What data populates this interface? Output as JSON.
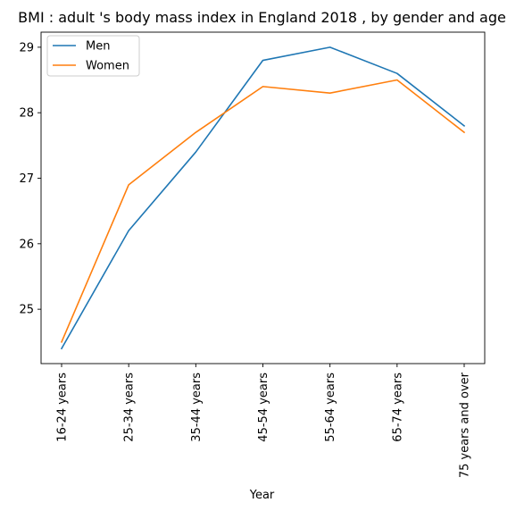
{
  "chart_data": {
    "type": "line",
    "title": "BMI : adult 's body mass index in England 2018 , by gender and age",
    "xlabel": "Year",
    "ylabel": "",
    "categories": [
      "16-24 years",
      "25-34 years",
      "35-44 years",
      "45-54 years",
      "55-64 years",
      "65-74 years",
      "75 years and over"
    ],
    "series": [
      {
        "name": "Men",
        "color": "#1f77b4",
        "values": [
          24.4,
          26.2,
          27.4,
          28.8,
          29.0,
          28.6,
          27.8
        ]
      },
      {
        "name": "Women",
        "color": "#ff7f0e",
        "values": [
          24.5,
          26.9,
          27.7,
          28.4,
          28.3,
          28.5,
          27.7
        ]
      }
    ],
    "yticks": [
      25,
      26,
      27,
      28,
      29
    ],
    "ylim": [
      24.17,
      29.23
    ],
    "grid": false,
    "legend_position": "top-left"
  }
}
